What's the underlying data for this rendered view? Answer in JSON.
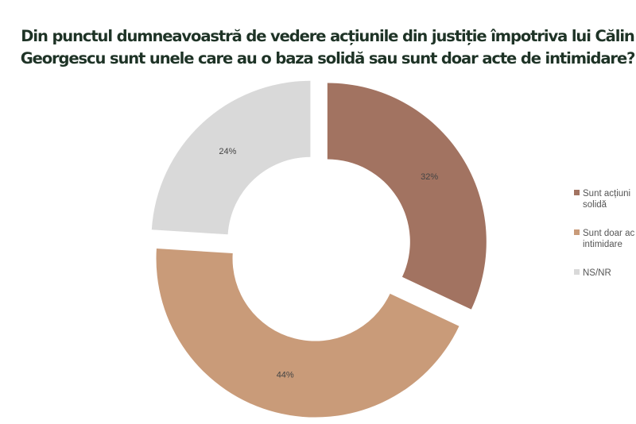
{
  "chart_data": {
    "type": "donut",
    "title": [
      "Din punctul dumneavoastră de vedere acțiunile din justiție împotriva lui Călin",
      "Georgescu sunt unele care au o baza solidă sau sunt doar acte de intimidare?"
    ],
    "categories": [
      [
        "Sunt acțiuni",
        "solidă"
      ],
      [
        "Sunt doar ac",
        "intimidare"
      ],
      [
        "NS/NR"
      ]
    ],
    "values": [
      32,
      44,
      24
    ],
    "value_labels": [
      "32%",
      "44%",
      "24%"
    ],
    "colors": [
      "#a27361",
      "#c99b79",
      "#d9d9d9"
    ],
    "legend": "right"
  }
}
